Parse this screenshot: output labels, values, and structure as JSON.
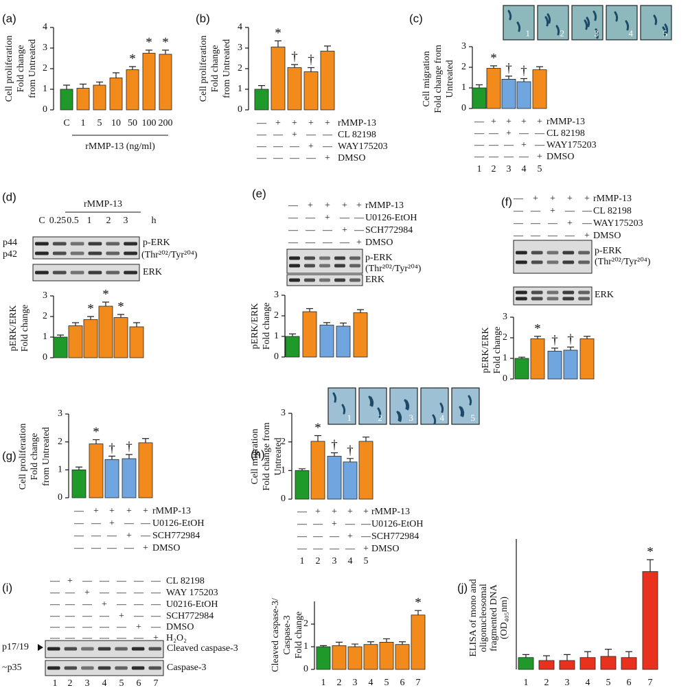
{
  "chart_data": [
    {
      "type": "bar",
      "panel": "(a)",
      "ylabel": [
        "Cell proliferation",
        "Fold change",
        "from Untreated"
      ],
      "categories": [
        "C",
        "1",
        "5",
        "10",
        "50",
        "100",
        "200"
      ],
      "xlabel": "rMMP-13 (ng/ml)",
      "values": [
        1.0,
        1.05,
        1.2,
        1.55,
        1.95,
        2.75,
        2.7
      ],
      "errors": [
        0.2,
        0.2,
        0.15,
        0.25,
        0.15,
        0.15,
        0.2
      ],
      "markers": [
        null,
        null,
        null,
        null,
        "*",
        "*",
        "*"
      ],
      "colors": [
        "#1f9a2a",
        "#f28a1c",
        "#f28a1c",
        "#f28a1c",
        "#f28a1c",
        "#f28a1c",
        "#f28a1c"
      ],
      "ylim": [
        0,
        4
      ],
      "yticks": [
        0,
        1,
        2,
        3,
        4
      ]
    },
    {
      "type": "bar",
      "panel": "(b)",
      "ylabel": [
        "Cell proliferation",
        "Fold change",
        "from Untreated"
      ],
      "values": [
        1.0,
        3.05,
        2.05,
        1.85,
        2.85
      ],
      "errors": [
        0.18,
        0.3,
        0.15,
        0.2,
        0.25
      ],
      "markers": [
        null,
        "*",
        "†",
        "†",
        null
      ],
      "colors": [
        "#1f9a2a",
        "#f28a1c",
        "#f28a1c",
        "#f28a1c",
        "#f28a1c"
      ],
      "ylim": [
        0,
        4
      ],
      "yticks": [
        0,
        1,
        2,
        3,
        4
      ],
      "treatments": [
        {
          "name": "rMMP-13",
          "signs": [
            "—",
            "+",
            "+",
            "+",
            "+"
          ]
        },
        {
          "name": "CL 82198",
          "signs": [
            "—",
            "—",
            "+",
            "—",
            "—"
          ]
        },
        {
          "name": "WAY175203",
          "signs": [
            "—",
            "—",
            "—",
            "+",
            "—"
          ]
        },
        {
          "name": "DMSO",
          "signs": [
            "—",
            "—",
            "—",
            "—",
            "+"
          ]
        }
      ]
    },
    {
      "type": "bar",
      "panel": "(c)",
      "ylabel": [
        "Cell migration",
        "Fold change from",
        "Untreated"
      ],
      "values": [
        1.0,
        1.95,
        1.42,
        1.3,
        1.88
      ],
      "errors": [
        0.15,
        0.12,
        0.15,
        0.15,
        0.15
      ],
      "markers": [
        null,
        "*",
        "†",
        "†",
        null
      ],
      "colors": [
        "#1f9a2a",
        "#f28a1c",
        "#6fa6e0",
        "#6fa6e0",
        "#f28a1c"
      ],
      "ylim": [
        0,
        3
      ],
      "yticks": [
        0,
        1,
        2,
        3
      ],
      "treatments": [
        {
          "name": "rMMP-13",
          "signs": [
            "—",
            "+",
            "+",
            "+",
            "+"
          ]
        },
        {
          "name": "CL 82198",
          "signs": [
            "—",
            "—",
            "+",
            "—",
            "—"
          ]
        },
        {
          "name": "WAY175203",
          "signs": [
            "—",
            "—",
            "—",
            "+",
            "—"
          ]
        },
        {
          "name": "DMSO",
          "signs": [
            "—",
            "—",
            "—",
            "—",
            "+"
          ]
        }
      ],
      "lanes": [
        "1",
        "2",
        "3",
        "4",
        "5"
      ],
      "images": [
        "1",
        "2",
        "3",
        "4",
        "5"
      ]
    },
    {
      "type": "bar",
      "panel": "(d)",
      "ylabel": [
        "pERK/ERK",
        "Fold change"
      ],
      "values": [
        1.0,
        1.55,
        1.85,
        2.5,
        1.95,
        1.5
      ],
      "errors": [
        0.1,
        0.15,
        0.15,
        0.2,
        0.15,
        0.2
      ],
      "markers": [
        null,
        null,
        "*",
        "*",
        "*",
        null
      ],
      "colors": [
        "#1f9a2a",
        "#f28a1c",
        "#f28a1c",
        "#f28a1c",
        "#f28a1c",
        "#f28a1c"
      ],
      "ylim": [
        0,
        3
      ],
      "yticks": [
        0,
        1,
        2,
        3
      ],
      "blot": {
        "header": "rMMP-13",
        "lanes": [
          "C",
          "0.25",
          "0.5",
          "1",
          "2",
          "3",
          "h"
        ],
        "bands": [
          "p44",
          "p42"
        ],
        "labels": [
          "p-ERK",
          "(Thr²⁰²/Tyr²⁰⁴)",
          "ERK"
        ]
      }
    },
    {
      "type": "bar",
      "panel": "(e)",
      "ylabel": [
        "pERK/ERK",
        "Fold change"
      ],
      "values": [
        1.0,
        2.2,
        1.55,
        1.5,
        2.15
      ],
      "errors": [
        0.12,
        0.15,
        0.12,
        0.15,
        0.15
      ],
      "colors": [
        "#1f9a2a",
        "#f28a1c",
        "#6fa6e0",
        "#6fa6e0",
        "#f28a1c"
      ],
      "ylim": [
        0,
        3
      ],
      "yticks": [
        0,
        1,
        2,
        3
      ],
      "treatments": [
        {
          "name": "rMMP-13",
          "signs": [
            "—",
            "+",
            "+",
            "+",
            "+"
          ]
        },
        {
          "name": "U0126-EtOH",
          "signs": [
            "—",
            "—",
            "+",
            "—",
            "—"
          ]
        },
        {
          "name": "SCH772984",
          "signs": [
            "—",
            "—",
            "—",
            "+",
            "—"
          ]
        },
        {
          "name": "DMSO",
          "signs": [
            "—",
            "—",
            "—",
            "—",
            "+"
          ]
        }
      ],
      "blot": {
        "labels": [
          "p-ERK",
          "(Thr²⁰²/Tyr²⁰⁴)",
          "ERK"
        ]
      }
    },
    {
      "type": "bar",
      "panel": "(f)",
      "ylabel": [
        "pERK/ERK",
        "Fold change"
      ],
      "values": [
        1.0,
        1.95,
        1.35,
        1.4,
        1.95
      ],
      "errors": [
        0.06,
        0.12,
        0.15,
        0.15,
        0.12
      ],
      "markers": [
        null,
        "*",
        "†",
        "†",
        null
      ],
      "colors": [
        "#1f9a2a",
        "#f28a1c",
        "#6fa6e0",
        "#6fa6e0",
        "#f28a1c"
      ],
      "ylim": [
        0,
        3
      ],
      "yticks": [
        0,
        1,
        2,
        3
      ],
      "treatments": [
        {
          "name": "rMMP-13",
          "signs": [
            "—",
            "+",
            "+",
            "+",
            "+"
          ]
        },
        {
          "name": "CL 82198",
          "signs": [
            "—",
            "—",
            "+",
            "—",
            "—"
          ]
        },
        {
          "name": "WAY175203",
          "signs": [
            "—",
            "—",
            "—",
            "+",
            "—"
          ]
        },
        {
          "name": "DMSO",
          "signs": [
            "—",
            "—",
            "—",
            "—",
            "+"
          ]
        }
      ],
      "blot": {
        "labels": [
          "p-ERK",
          "(Thr²⁰²/Tyr²⁰⁴)",
          "ERK"
        ]
      }
    },
    {
      "type": "bar",
      "panel": "(g)",
      "ylabel": [
        "Cell proliferation",
        "Fold change",
        "from Untreated"
      ],
      "values": [
        1.0,
        1.93,
        1.37,
        1.4,
        1.97
      ],
      "errors": [
        0.1,
        0.15,
        0.12,
        0.15,
        0.15
      ],
      "markers": [
        null,
        "*",
        "†",
        "†",
        null
      ],
      "colors": [
        "#1f9a2a",
        "#f28a1c",
        "#6fa6e0",
        "#6fa6e0",
        "#f28a1c"
      ],
      "ylim": [
        0,
        3
      ],
      "yticks": [
        0,
        1,
        2,
        3
      ],
      "treatments": [
        {
          "name": "rMMP-13",
          "signs": [
            "—",
            "+",
            "+",
            "+",
            "+"
          ]
        },
        {
          "name": "U0126-EtOH",
          "signs": [
            "—",
            "—",
            "+",
            "—",
            "—"
          ]
        },
        {
          "name": "SCH772984",
          "signs": [
            "—",
            "—",
            "—",
            "+",
            "—"
          ]
        },
        {
          "name": "DMSO",
          "signs": [
            "—",
            "—",
            "—",
            "—",
            "+"
          ]
        }
      ]
    },
    {
      "type": "bar",
      "panel": "(h)",
      "ylabel": [
        "Cell migration",
        "Fold change from",
        "Untreated"
      ],
      "values": [
        1.0,
        2.02,
        1.5,
        1.3,
        2.02
      ],
      "errors": [
        0.06,
        0.2,
        0.12,
        0.12,
        0.15
      ],
      "markers": [
        null,
        "*",
        "†",
        "†",
        null
      ],
      "colors": [
        "#1f9a2a",
        "#f28a1c",
        "#6fa6e0",
        "#6fa6e0",
        "#f28a1c"
      ],
      "ylim": [
        0,
        3
      ],
      "yticks": [
        0,
        1,
        2,
        3
      ],
      "treatments": [
        {
          "name": "rMMP-13",
          "signs": [
            "—",
            "+",
            "+",
            "+",
            "+"
          ]
        },
        {
          "name": "U0126-EtOH",
          "signs": [
            "—",
            "—",
            "+",
            "—",
            "—"
          ]
        },
        {
          "name": "SCH772984",
          "signs": [
            "—",
            "—",
            "—",
            "+",
            "—"
          ]
        },
        {
          "name": "DMSO",
          "signs": [
            "—",
            "—",
            "—",
            "—",
            "+"
          ]
        }
      ],
      "lanes": [
        "1",
        "2",
        "3",
        "4",
        "5"
      ],
      "images": [
        "1",
        "2",
        "3",
        "4",
        "5"
      ]
    },
    {
      "type": "bar",
      "panel": "(i)",
      "ylabel": [
        "Cleaved caspase-3/",
        "Caspase-3",
        "Fold change"
      ],
      "values": [
        1.0,
        1.05,
        1.0,
        1.1,
        1.2,
        1.1,
        2.4
      ],
      "errors": [
        0.05,
        0.15,
        0.12,
        0.12,
        0.15,
        0.12,
        0.2
      ],
      "markers": [
        null,
        null,
        null,
        null,
        null,
        null,
        "*"
      ],
      "colors": [
        "#1f9a2a",
        "#f28a1c",
        "#f28a1c",
        "#f28a1c",
        "#f28a1c",
        "#f28a1c",
        "#f28a1c"
      ],
      "ylim": [
        0,
        3
      ],
      "yticks": [
        0,
        1,
        2
      ],
      "bar_lanes": [
        "1",
        "2",
        "3",
        "4",
        "5",
        "6",
        "7"
      ],
      "treatments": [
        {
          "name": "CL 82198",
          "signs": [
            "—",
            "+",
            "—",
            "—",
            "—",
            "—",
            "—"
          ]
        },
        {
          "name": "WAY 175203",
          "signs": [
            "—",
            "—",
            "+",
            "—",
            "—",
            "—",
            "—"
          ]
        },
        {
          "name": "U0216-EtOH",
          "signs": [
            "—",
            "—",
            "—",
            "+",
            "—",
            "—",
            "—"
          ]
        },
        {
          "name": "SCH772984",
          "signs": [
            "—",
            "—",
            "—",
            "—",
            "+",
            "—",
            "—"
          ]
        },
        {
          "name": "DMSO",
          "signs": [
            "—",
            "—",
            "—",
            "—",
            "—",
            "+",
            "—"
          ]
        },
        {
          "name": "H₂O₂",
          "signs": [
            "—",
            "—",
            "—",
            "—",
            "—",
            "—",
            "+"
          ]
        }
      ],
      "lanes": [
        "1",
        "2",
        "3",
        "4",
        "5",
        "6",
        "7"
      ],
      "blot": {
        "bands": [
          "p17/19",
          "~p35"
        ],
        "labels": [
          "Cleaved caspase-3",
          "Caspase-3"
        ]
      }
    },
    {
      "type": "bar",
      "panel": "(j)",
      "ylabel": [
        "ELISA of mono and",
        "oligonucleosomal",
        "fragmented DNA",
        "(OD₄₀₅nm)"
      ],
      "values": [
        0.2,
        0.15,
        0.15,
        0.2,
        0.22,
        0.2,
        1.65
      ],
      "errors": [
        0.05,
        0.08,
        0.1,
        0.1,
        0.12,
        0.1,
        0.2
      ],
      "markers": [
        null,
        null,
        null,
        null,
        null,
        null,
        "*"
      ],
      "colors": [
        "#1f9a2a",
        "#e8321e",
        "#e8321e",
        "#e8321e",
        "#e8321e",
        "#e8321e",
        "#e8321e"
      ],
      "ylim": [
        0,
        2.2
      ],
      "bar_lanes": [
        "1",
        "2",
        "3",
        "4",
        "5",
        "6",
        "7"
      ]
    }
  ]
}
